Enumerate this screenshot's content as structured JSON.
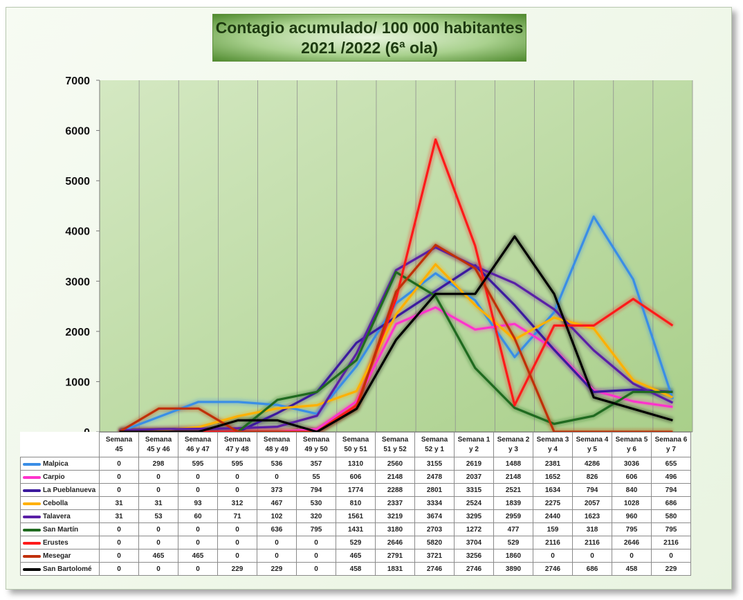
{
  "chart_data": {
    "type": "line",
    "title": "Contagio acumulado/ 100 000 habitantes",
    "subtitle": "2021 /2022 (6ª ola)",
    "ylim": [
      0,
      7000
    ],
    "yticks": [
      "0",
      "1000",
      "2000",
      "3000",
      "4000",
      "5000",
      "6000",
      "7000"
    ],
    "grid": "vertical",
    "legend": "data-table-below",
    "categories": [
      [
        "Semana",
        "45"
      ],
      [
        "Semana",
        "45 y 46"
      ],
      [
        "Semana",
        "46 y 47"
      ],
      [
        "Semana",
        "47 y 48"
      ],
      [
        "Semana",
        "48 y 49"
      ],
      [
        "Semana",
        "49 y 50"
      ],
      [
        "Semana",
        "50 y 51"
      ],
      [
        "Semana",
        "51 y 52"
      ],
      [
        "Semana",
        "52 y 1"
      ],
      [
        "Semana 1",
        "y 2"
      ],
      [
        "Semana 2",
        "y 3"
      ],
      [
        "Semana 3",
        "y 4"
      ],
      [
        "Semana 4",
        "y 5"
      ],
      [
        "Semana 5",
        "y 6"
      ],
      [
        "Semana 6",
        "y 7"
      ]
    ],
    "series": [
      {
        "name": "Malpica",
        "color": "#3a8ee6",
        "values": [
          0,
          298,
          595,
          595,
          536,
          357,
          1310,
          2560,
          3155,
          2619,
          1488,
          2381,
          4286,
          3036,
          655
        ]
      },
      {
        "name": "Carpio",
        "color": "#ff33cc",
        "values": [
          0,
          0,
          0,
          0,
          0,
          55,
          606,
          2148,
          2478,
          2037,
          2148,
          1652,
          826,
          606,
          496
        ]
      },
      {
        "name": "La Pueblanueva",
        "color": "#3c1a9e",
        "values": [
          0,
          0,
          0,
          0,
          373,
          794,
          1774,
          2288,
          2801,
          3315,
          2521,
          1634,
          794,
          840,
          794
        ]
      },
      {
        "name": "Cebolla",
        "color": "#ffb000",
        "values": [
          31,
          31,
          93,
          312,
          467,
          530,
          810,
          2337,
          3334,
          2524,
          1839,
          2275,
          2057,
          1028,
          686
        ]
      },
      {
        "name": "Talavera",
        "color": "#5a1fa6",
        "values": [
          31,
          53,
          60,
          71,
          102,
          320,
          1561,
          3219,
          3674,
          3295,
          2959,
          2440,
          1623,
          960,
          580
        ]
      },
      {
        "name": "San Martín",
        "color": "#1f6a1f",
        "values": [
          0,
          0,
          0,
          0,
          636,
          795,
          1431,
          3180,
          2703,
          1272,
          477,
          159,
          318,
          795,
          795
        ]
      },
      {
        "name": "Erustes",
        "color": "#ff1a1a",
        "values": [
          0,
          0,
          0,
          0,
          0,
          0,
          529,
          2646,
          5820,
          3704,
          529,
          2116,
          2116,
          2646,
          2116
        ]
      },
      {
        "name": "Mesegar",
        "color": "#c03008",
        "values": [
          0,
          465,
          465,
          0,
          0,
          0,
          465,
          2791,
          3721,
          3256,
          1860,
          0,
          0,
          0,
          0
        ]
      },
      {
        "name": "San Bartolomé",
        "color": "#000000",
        "values": [
          0,
          0,
          0,
          229,
          229,
          0,
          458,
          1831,
          2746,
          2746,
          3890,
          2746,
          686,
          458,
          229
        ]
      }
    ]
  }
}
